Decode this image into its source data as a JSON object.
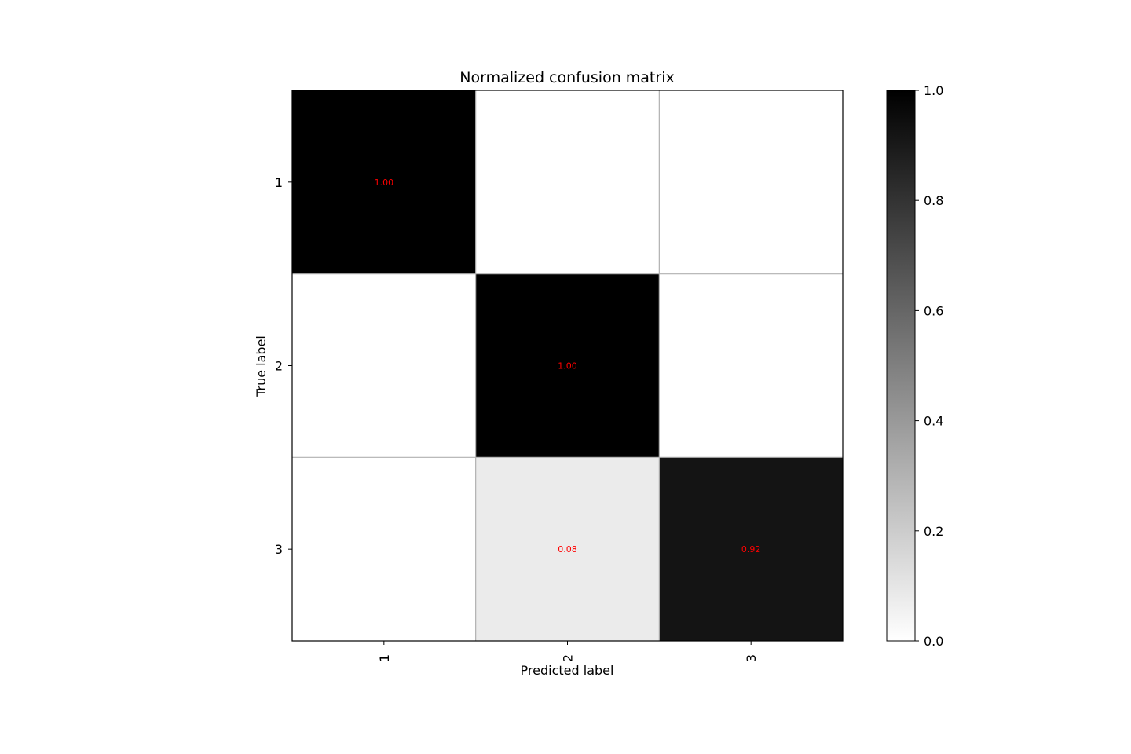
{
  "chart_data": {
    "type": "heatmap",
    "title": "Normalized confusion matrix",
    "xlabel": "Predicted label",
    "ylabel": "True label",
    "x_categories": [
      "1",
      "2",
      "3"
    ],
    "y_categories": [
      "1",
      "2",
      "3"
    ],
    "values": [
      [
        1.0,
        0.0,
        0.0
      ],
      [
        0.0,
        1.0,
        0.0
      ],
      [
        0.0,
        0.08,
        0.92
      ]
    ],
    "cell_labels": [
      [
        "1.00",
        "",
        ""
      ],
      [
        "",
        "1.00",
        ""
      ],
      [
        "",
        "0.08",
        "0.92"
      ]
    ],
    "colormap": "gray_r",
    "value_range": [
      0.0,
      1.0
    ],
    "colorbar_ticks": [
      "0.0",
      "0.2",
      "0.4",
      "0.6",
      "0.8",
      "1.0"
    ],
    "cell_text_color": "#ff0000",
    "grid": true,
    "grid_color": "#b0b0b0"
  }
}
